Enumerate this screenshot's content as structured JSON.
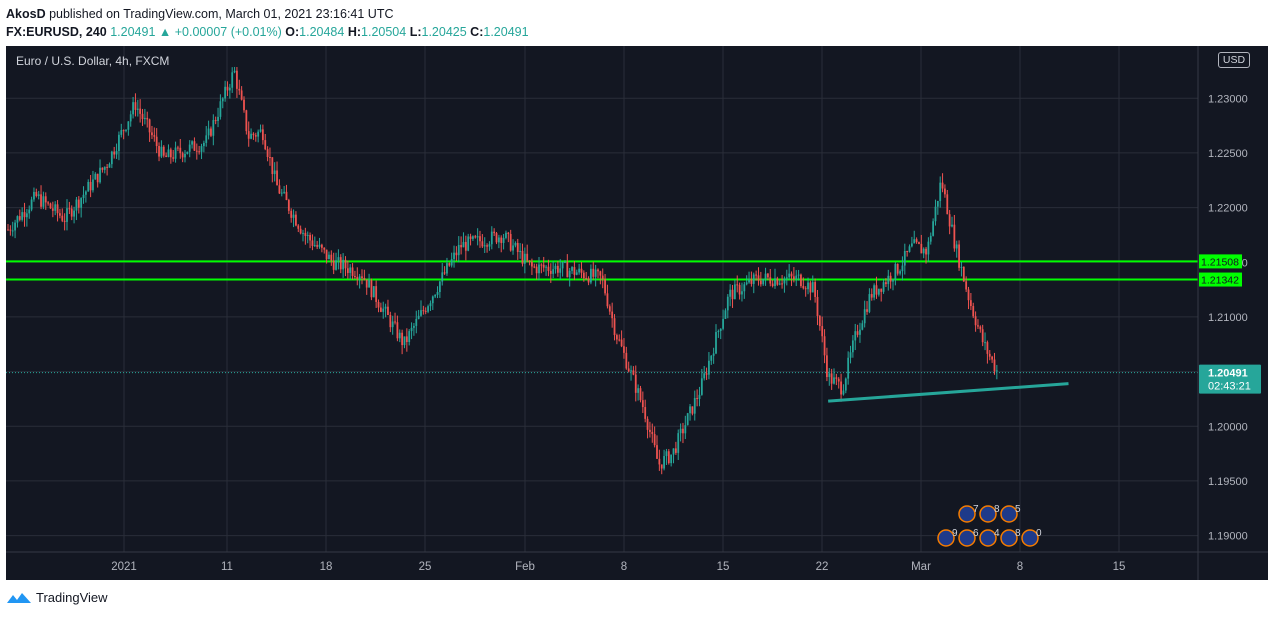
{
  "header": {
    "author": "AkosD",
    "published_text": "published on TradingView.com, March 01, 2021 23:16:41 UTC",
    "symbol": "FX:EURUSD, 240",
    "price": "1.20491",
    "change": "▲ +0.00007 (+0.01%)",
    "o_label": "O:",
    "o_value": "1.20484",
    "h_label": "H:",
    "h_value": "1.20504",
    "l_label": "L:",
    "l_value": "1.20425",
    "c_label": "C:",
    "c_value": "1.20491"
  },
  "legend": "Euro / U.S. Dollar, 4h, FXCM",
  "currency_button": "USD",
  "footer": {
    "brand": "TradingView"
  },
  "colors": {
    "background": "#131722",
    "grid": "#2a2e39",
    "up": "#26a69a",
    "down": "#ef5350",
    "level_line": "#00ff00",
    "trend_line": "#26a69a"
  },
  "chart_data": {
    "type": "candlestick",
    "symbol": "EURUSD",
    "timeframe": "4h",
    "ylim": [
      1.1885,
      1.2335
    ],
    "y_ticks": [
      "1.23000",
      "1.22500",
      "1.22000",
      "1.21500",
      "1.21000",
      "1.20500",
      "1.20000",
      "1.19500",
      "1.19000"
    ],
    "x_ticks": [
      "2021",
      "11",
      "18",
      "25",
      "Feb",
      "8",
      "15",
      "22",
      "Mar",
      "8",
      "15"
    ],
    "current_price": "1.20491",
    "countdown": "02:43:21",
    "horizontal_levels": [
      "1.21508",
      "1.21342"
    ],
    "trendline": {
      "from": {
        "date": "2021-02-17",
        "price": 1.2023
      },
      "to": {
        "date": "2021-03-06",
        "price": 1.2039
      }
    },
    "path_points": [
      {
        "d": "2020-12-21",
        "p": 1.218
      },
      {
        "d": "2020-12-23",
        "p": 1.221
      },
      {
        "d": "2020-12-25",
        "p": 1.219
      },
      {
        "d": "2020-12-28",
        "p": 1.224
      },
      {
        "d": "2020-12-30",
        "p": 1.2295
      },
      {
        "d": "2021-01-01",
        "p": 1.2245
      },
      {
        "d": "2021-01-04",
        "p": 1.226
      },
      {
        "d": "2021-01-06",
        "p": 1.2325
      },
      {
        "d": "2021-01-07",
        "p": 1.2265
      },
      {
        "d": "2021-01-08",
        "p": 1.227
      },
      {
        "d": "2021-01-09",
        "p": 1.222
      },
      {
        "d": "2021-01-11",
        "p": 1.2175
      },
      {
        "d": "2021-01-13",
        "p": 1.215
      },
      {
        "d": "2021-01-15",
        "p": 1.214
      },
      {
        "d": "2021-01-18",
        "p": 1.2075
      },
      {
        "d": "2021-01-20",
        "p": 1.212
      },
      {
        "d": "2021-01-22",
        "p": 1.2165
      },
      {
        "d": "2021-01-25",
        "p": 1.2175
      },
      {
        "d": "2021-01-27",
        "p": 1.2145
      },
      {
        "d": "2021-01-29",
        "p": 1.2145
      },
      {
        "d": "2021-02-01",
        "p": 1.2135
      },
      {
        "d": "2021-02-02",
        "p": 1.2085
      },
      {
        "d": "2021-02-04",
        "p": 1.2015
      },
      {
        "d": "2021-02-05",
        "p": 1.1965
      },
      {
        "d": "2021-02-06",
        "p": 1.1975
      },
      {
        "d": "2021-02-08",
        "p": 1.2035
      },
      {
        "d": "2021-02-10",
        "p": 1.212
      },
      {
        "d": "2021-02-12",
        "p": 1.2135
      },
      {
        "d": "2021-02-15",
        "p": 1.2135
      },
      {
        "d": "2021-02-16",
        "p": 1.2125
      },
      {
        "d": "2021-02-17",
        "p": 1.2045
      },
      {
        "d": "2021-02-18",
        "p": 1.2035
      },
      {
        "d": "2021-02-19",
        "p": 1.2085
      },
      {
        "d": "2021-02-20",
        "p": 1.212
      },
      {
        "d": "2021-02-22",
        "p": 1.2145
      },
      {
        "d": "2021-02-23",
        "p": 1.2165
      },
      {
        "d": "2021-02-24",
        "p": 1.216
      },
      {
        "d": "2021-02-25",
        "p": 1.2225
      },
      {
        "d": "2021-02-26",
        "p": 1.2165
      },
      {
        "d": "2021-02-27",
        "p": 1.2115
      },
      {
        "d": "2021-02-28",
        "p": 1.2075
      },
      {
        "d": "2021-03-01",
        "p": 1.2049
      }
    ],
    "event_markers": {
      "top_row": [
        "7",
        "8",
        "5"
      ],
      "bottom_row": [
        "9",
        "6",
        "4",
        "8",
        "0"
      ]
    }
  }
}
